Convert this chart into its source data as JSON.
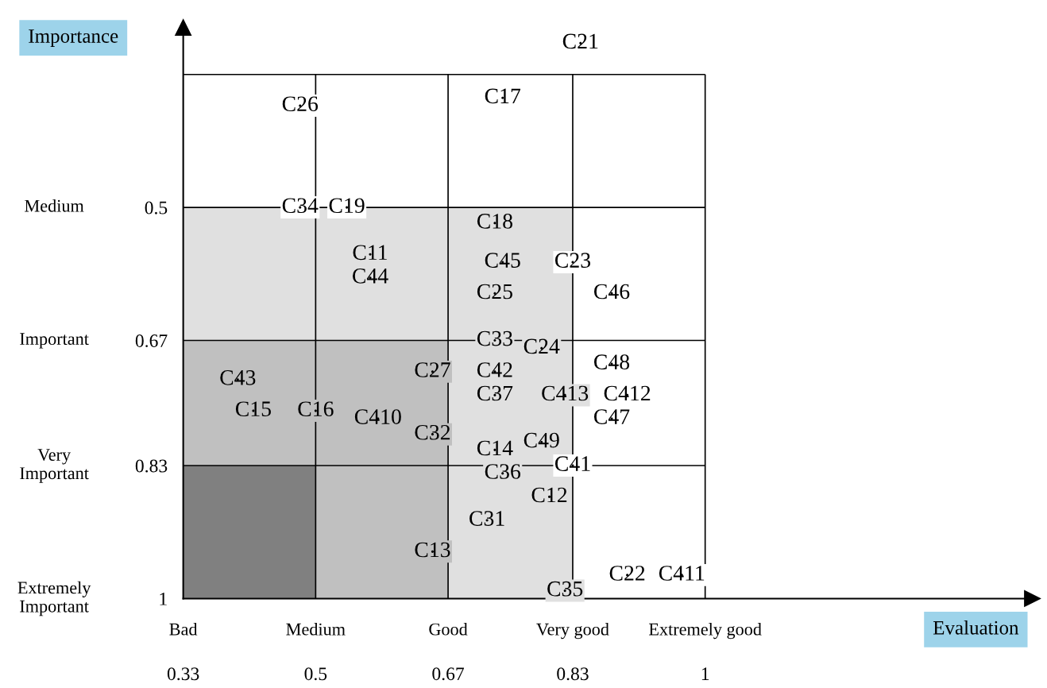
{
  "chart_data": {
    "type": "scatter",
    "xlabel": "Evaluation",
    "ylabel": "Importance",
    "xlim": [
      0.33,
      1.42
    ],
    "ylim": [
      1,
      0.27
    ],
    "xticks": [
      0.33,
      0.5,
      0.67,
      0.83,
      1
    ],
    "yticks": [
      0.5,
      0.67,
      0.83,
      1
    ],
    "ref_lines": [
      {
        "axis": "y",
        "value": 0.33,
        "color": "#000000"
      },
      {
        "axis": "y",
        "value": 0.5,
        "color": "#000000"
      },
      {
        "axis": "y",
        "value": 0.67,
        "color": "#000000"
      },
      {
        "axis": "y",
        "value": 0.83,
        "color": "#000000"
      },
      {
        "axis": "x",
        "value": 0.5,
        "color": "#000000"
      },
      {
        "axis": "x",
        "value": 0.67,
        "color": "#000000"
      },
      {
        "axis": "x",
        "value": 0.83,
        "color": "#000000"
      },
      {
        "axis": "x",
        "value": 1,
        "color": "#000000"
      }
    ],
    "annotations": [
      "Bad",
      "Medium",
      "Good",
      "Very good",
      "Extremely good",
      "Medium",
      "Important",
      "Very\nImportant",
      "Extremely\nImportant"
    ],
    "marker": "circle",
    "series": [
      {
        "color": "#000000",
        "x": [
          0.84,
          0.48,
          0.74,
          0.48,
          0.54,
          0.73,
          0.57,
          0.57,
          0.74,
          0.83,
          0.73,
          0.88,
          0.73,
          0.79,
          0.65,
          0.73,
          0.88,
          0.4,
          0.73,
          0.82,
          0.9,
          0.42,
          0.5,
          0.88,
          0.58,
          0.65,
          0.73,
          0.79,
          0.74,
          0.83,
          0.8,
          0.72,
          0.65,
          0.82,
          0.9,
          0.97
        ],
        "values": [
          0.29,
          0.37,
          0.36,
          0.5,
          0.5,
          0.52,
          0.56,
          0.59,
          0.57,
          0.57,
          0.61,
          0.61,
          0.67,
          0.68,
          0.71,
          0.71,
          0.7,
          0.72,
          0.74,
          0.74,
          0.74,
          0.76,
          0.76,
          0.77,
          0.77,
          0.79,
          0.81,
          0.8,
          0.84,
          0.83,
          0.87,
          0.9,
          0.94,
          0.99,
          0.97,
          0.97
        ],
        "value_labels": [
          "C21",
          "C26",
          "C17",
          "C34",
          "C19",
          "C18",
          "C11",
          "C44",
          "C45",
          "C23",
          "C25",
          "C46",
          "C33",
          "C24",
          "C27",
          "C42",
          "C48",
          "C43",
          "C37",
          "C413",
          "C412",
          "C15",
          "C16",
          "C47",
          "C410",
          "C32",
          "C14",
          "C49",
          "C36",
          "C41",
          "C12",
          "C31",
          "C13",
          "C35",
          "C22",
          "C411"
        ]
      }
    ]
  }
}
